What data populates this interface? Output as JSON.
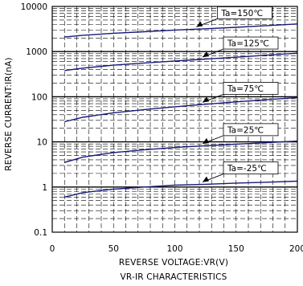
{
  "chart_data": {
    "type": "line",
    "xlabel": "REVERSE VOLTAGE:VR(V)",
    "ylabel": "REVERSE CURRENT:IR(nA)",
    "caption": "VR-IR CHARACTERISTICS",
    "x_scale": "linear",
    "y_scale": "log",
    "xlim": [
      0,
      200
    ],
    "ylim": [
      0.1,
      10000
    ],
    "x_ticks": [
      "0",
      "50",
      "100",
      "150",
      "200"
    ],
    "y_ticks": [
      "0.1",
      "1",
      "10",
      "100",
      "1000",
      "10000"
    ],
    "grid": true,
    "series": [
      {
        "name": "Ta=150℃",
        "x": [
          10,
          25,
          50,
          75,
          100,
          125,
          150,
          175,
          200
        ],
        "y": [
          2100,
          2300,
          2550,
          2750,
          3000,
          3200,
          3450,
          3750,
          4100
        ]
      },
      {
        "name": "Ta=125℃",
        "x": [
          10,
          25,
          50,
          75,
          100,
          125,
          150,
          175,
          200
        ],
        "y": [
          380,
          430,
          500,
          560,
          620,
          680,
          750,
          830,
          920
        ]
      },
      {
        "name": "Ta=75℃",
        "x": [
          10,
          25,
          50,
          75,
          100,
          125,
          150,
          175,
          200
        ],
        "y": [
          28,
          35,
          44,
          52,
          60,
          68,
          77,
          86,
          96
        ]
      },
      {
        "name": "Ta=25℃",
        "x": [
          10,
          25,
          50,
          75,
          100,
          125,
          150,
          175,
          200
        ],
        "y": [
          3.5,
          4.6,
          5.8,
          6.7,
          7.5,
          8.2,
          8.9,
          9.6,
          10.4
        ]
      },
      {
        "name": "Ta=-25℃",
        "x": [
          10,
          25,
          50,
          75,
          100,
          125,
          150,
          175,
          200
        ],
        "y": [
          0.6,
          0.75,
          0.9,
          1.0,
          1.1,
          1.15,
          1.22,
          1.28,
          1.35
        ]
      }
    ],
    "annotations": [
      {
        "text": "Ta=150℃",
        "series": 0,
        "x_at": 115
      },
      {
        "text": "Ta=125℃",
        "series": 1,
        "x_at": 120
      },
      {
        "text": "Ta=75℃",
        "series": 2,
        "x_at": 120
      },
      {
        "text": "Ta=25℃",
        "series": 3,
        "x_at": 120
      },
      {
        "text": "Ta=-25℃",
        "series": 4,
        "x_at": 120
      }
    ],
    "colors": {
      "line": "#1a1a7a",
      "axis": "#000000",
      "grid": "#000000"
    }
  }
}
